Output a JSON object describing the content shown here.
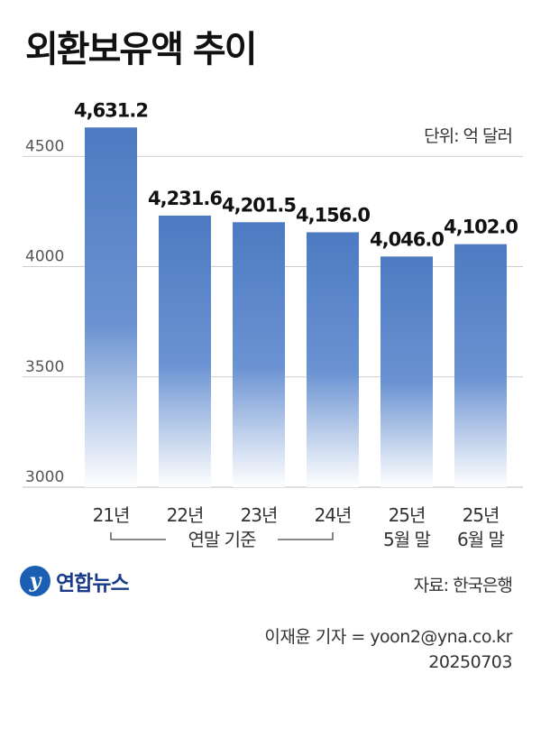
{
  "title": "외환보유액 추이",
  "unit_label": "단위: 억 달러",
  "source": "자료: 한국은행",
  "logo_text": "연합뉴스",
  "logo_mark": "y",
  "credit_reporter": "이재윤 기자 = yoon2@yna.co.kr",
  "credit_date": "20250703",
  "group_note": "연말 기준",
  "chart_data": {
    "type": "bar",
    "title": "외환보유액 추이",
    "unit": "억 달러",
    "categories": [
      "21년",
      "22년",
      "23년",
      "24년",
      "25년\n5월 말",
      "25년\n6월 말"
    ],
    "category_lines": [
      [
        "21년"
      ],
      [
        "22년"
      ],
      [
        "23년"
      ],
      [
        "24년"
      ],
      [
        "25년",
        "5월 말"
      ],
      [
        "25년",
        "6월 말"
      ]
    ],
    "values": [
      4631.2,
      4231.6,
      4201.5,
      4156.0,
      4046.0,
      4102.0
    ],
    "value_labels": [
      "4,631.2",
      "4,231.6",
      "4,201.5",
      "4,156.0",
      "4,046.0",
      "4,102.0"
    ],
    "yticks": [
      3000,
      3500,
      4000,
      4500
    ],
    "ylim": [
      3000,
      4800
    ],
    "grid": true,
    "bar_color": "#5b86c8"
  }
}
